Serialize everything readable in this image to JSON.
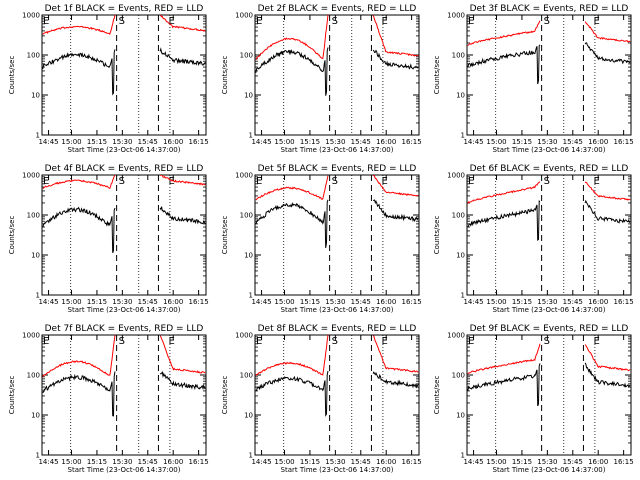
{
  "chart_data": [
    {
      "type": "line",
      "title": "Det 1f BLACK = Events, RED = LLD",
      "xlabel": "Start Time (23-Oct-06 14:37:00)",
      "ylabel": "Counts/sec",
      "x_ticks": [
        "14:45",
        "15:00",
        "15:15",
        "15:30",
        "15:45",
        "16:00",
        "16:15"
      ],
      "y_ticks": [
        "1",
        "10",
        "100",
        "1000"
      ],
      "ylim": [
        1,
        1000
      ],
      "y_scale": "log",
      "markers": {
        "left": "E",
        "middle": "S",
        "right": "E"
      },
      "series": [
        {
          "name": "RED = LLD",
          "color": "#ff0000",
          "style": "orbital",
          "level": 340,
          "amp": 1.5,
          "gap_peak": 1000
        },
        {
          "name": "BLACK = Events",
          "color": "#000000",
          "style": "orbital",
          "level": 50,
          "amp": 2.0,
          "gap_peak": 130
        }
      ]
    },
    {
      "type": "line",
      "title": "Det 2f BLACK = Events, RED = LLD",
      "xlabel": "Start Time (23-Oct-06 14:37:00)",
      "ylabel": "Counts/sec",
      "x_ticks": [
        "14:45",
        "15:00",
        "15:15",
        "15:30",
        "15:45",
        "16:00",
        "16:15"
      ],
      "y_ticks": [
        "1",
        "10",
        "100",
        "1000"
      ],
      "ylim": [
        1,
        1000
      ],
      "y_scale": "log",
      "markers": {
        "left": "E",
        "middle": "S",
        "right": "E"
      },
      "series": [
        {
          "name": "RED = LLD",
          "color": "#ff0000",
          "style": "orbital",
          "level": 80,
          "amp": 3.2,
          "gap_peak": 1000
        },
        {
          "name": "BLACK = Events",
          "color": "#000000",
          "style": "orbital",
          "level": 40,
          "amp": 3.0,
          "gap_peak": 140
        }
      ]
    },
    {
      "type": "line",
      "title": "Det 3f BLACK = Events, RED = LLD",
      "xlabel": "Start Time (23-Oct-06 14:37:00)",
      "ylabel": "Counts/sec",
      "x_ticks": [
        "14:45",
        "15:00",
        "15:15",
        "15:30",
        "15:45",
        "16:00",
        "16:15"
      ],
      "y_ticks": [
        "1",
        "10",
        "100",
        "1000"
      ],
      "ylim": [
        1,
        1000
      ],
      "y_scale": "log",
      "markers": {
        "left": "E",
        "middle": "S",
        "right": "E"
      },
      "series": [
        {
          "name": "RED = LLD",
          "color": "#ff0000",
          "style": "rise",
          "level": 180,
          "amp": 2.3,
          "gap_peak": 700
        },
        {
          "name": "BLACK = Events",
          "color": "#000000",
          "style": "rise",
          "level": 55,
          "amp": 2.3,
          "gap_peak": 200
        }
      ]
    },
    {
      "type": "line",
      "title": "Det 4f BLACK = Events, RED = LLD",
      "xlabel": "Start Time (23-Oct-06 14:37:00)",
      "ylabel": "Counts/sec",
      "x_ticks": [
        "14:45",
        "15:00",
        "15:15",
        "15:30",
        "15:45",
        "16:00",
        "16:15"
      ],
      "y_ticks": [
        "1",
        "10",
        "100",
        "1000"
      ],
      "ylim": [
        1,
        1000
      ],
      "y_scale": "log",
      "markers": {
        "left": "E",
        "middle": "S",
        "right": "E"
      },
      "series": [
        {
          "name": "RED = LLD",
          "color": "#ff0000",
          "style": "orbital",
          "level": 480,
          "amp": 1.5,
          "gap_peak": 1000
        },
        {
          "name": "BLACK = Events",
          "color": "#000000",
          "style": "orbital",
          "level": 55,
          "amp": 2.5,
          "gap_peak": 160
        }
      ]
    },
    {
      "type": "line",
      "title": "Det 5f BLACK = Events, RED = LLD",
      "xlabel": "Start Time (23-Oct-06 14:37:00)",
      "ylabel": "Counts/sec",
      "x_ticks": [
        "14:45",
        "15:00",
        "15:15",
        "15:30",
        "15:45",
        "16:00",
        "16:15"
      ],
      "y_ticks": [
        "1",
        "10",
        "100",
        "1000"
      ],
      "ylim": [
        1,
        1000
      ],
      "y_scale": "log",
      "markers": {
        "left": "E",
        "middle": "S",
        "right": "E"
      },
      "series": [
        {
          "name": "RED = LLD",
          "color": "#ff0000",
          "style": "orbital",
          "level": 250,
          "amp": 1.9,
          "gap_peak": 1000
        },
        {
          "name": "BLACK = Events",
          "color": "#000000",
          "style": "orbital",
          "level": 65,
          "amp": 2.8,
          "gap_peak": 250
        }
      ]
    },
    {
      "type": "line",
      "title": "Det 6f BLACK = Events, RED = LLD",
      "xlabel": "Start Time (23-Oct-06 14:37:00)",
      "ylabel": "Counts/sec",
      "x_ticks": [
        "14:45",
        "15:00",
        "15:15",
        "15:30",
        "15:45",
        "16:00",
        "16:15"
      ],
      "y_ticks": [
        "1",
        "10",
        "100",
        "1000"
      ],
      "ylim": [
        1,
        1000
      ],
      "y_scale": "log",
      "markers": {
        "left": "E",
        "middle": "S",
        "right": "E"
      },
      "series": [
        {
          "name": "RED = LLD",
          "color": "#ff0000",
          "style": "rise",
          "level": 200,
          "amp": 2.6,
          "gap_peak": 700
        },
        {
          "name": "BLACK = Events",
          "color": "#000000",
          "style": "rise",
          "level": 55,
          "amp": 2.5,
          "gap_peak": 220
        }
      ]
    },
    {
      "type": "line",
      "title": "Det 7f BLACK = Events, RED = LLD",
      "xlabel": "Start Time (23-Oct-06 14:37:00)",
      "ylabel": "Counts/sec",
      "x_ticks": [
        "14:45",
        "15:00",
        "15:15",
        "15:30",
        "15:45",
        "16:00",
        "16:15"
      ],
      "y_ticks": [
        "1",
        "10",
        "100",
        "1000"
      ],
      "ylim": [
        1,
        1000
      ],
      "y_scale": "log",
      "markers": {
        "left": "E",
        "middle": "S",
        "right": "E"
      },
      "series": [
        {
          "name": "RED = LLD",
          "color": "#ff0000",
          "style": "orbital",
          "level": 95,
          "amp": 2.3,
          "gap_peak": 1000
        },
        {
          "name": "BLACK = Events",
          "color": "#000000",
          "style": "orbital",
          "level": 40,
          "amp": 2.2,
          "gap_peak": 120
        }
      ]
    },
    {
      "type": "line",
      "title": "Det 8f BLACK = Events, RED = LLD",
      "xlabel": "Start Time (23-Oct-06 14:37:00)",
      "ylabel": "Counts/sec",
      "x_ticks": [
        "14:45",
        "15:00",
        "15:15",
        "15:30",
        "15:45",
        "16:00",
        "16:15"
      ],
      "y_ticks": [
        "1",
        "10",
        "100",
        "1000"
      ],
      "ylim": [
        1,
        1000
      ],
      "y_scale": "log",
      "markers": {
        "left": "E",
        "middle": "S",
        "right": "E"
      },
      "series": [
        {
          "name": "RED = LLD",
          "color": "#ff0000",
          "style": "orbital",
          "level": 100,
          "amp": 2.0,
          "gap_peak": 1000
        },
        {
          "name": "BLACK = Events",
          "color": "#000000",
          "style": "orbital",
          "level": 45,
          "amp": 1.8,
          "gap_peak": 120
        }
      ]
    },
    {
      "type": "line",
      "title": "Det 9f BLACK = Events, RED = LLD",
      "xlabel": "Start Time (23-Oct-06 14:37:00)",
      "ylabel": "Counts/sec",
      "x_ticks": [
        "14:45",
        "15:00",
        "15:15",
        "15:30",
        "15:45",
        "16:00",
        "16:15"
      ],
      "y_ticks": [
        "1",
        "10",
        "100",
        "1000"
      ],
      "ylim": [
        1,
        1000
      ],
      "y_scale": "log",
      "markers": {
        "left": "E",
        "middle": "S",
        "right": "E"
      },
      "series": [
        {
          "name": "RED = LLD",
          "color": "#ff0000",
          "style": "rise",
          "level": 110,
          "amp": 2.3,
          "gap_peak": 600
        },
        {
          "name": "BLACK = Events",
          "color": "#000000",
          "style": "rise",
          "level": 45,
          "amp": 2.2,
          "gap_peak": 180
        }
      ]
    }
  ]
}
